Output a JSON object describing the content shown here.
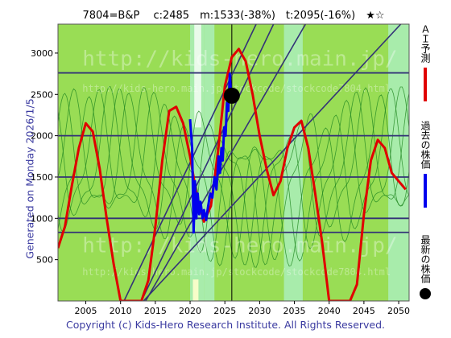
{
  "header": {
    "title": "7804=B&P　 c:2485　m:1533(-38%)　t:2095(-16%)　★☆"
  },
  "side_text": "Generated on Monday 2026/1/5.",
  "footer": {
    "copyright": "Copyright (c) Kids-Hero Research Institute. All Rights Reserved."
  },
  "watermark": {
    "main": "http://kids-hero.main.jp/",
    "small": "http://kids-hero.main.jp/stockcode/stockcode7804.html"
  },
  "legend": {
    "ai_forecast": "ＡＩ予測",
    "past_price": "過去の株価",
    "latest_price": "最新の株価"
  },
  "colors": {
    "forecast": "#e00000",
    "past": "#0000ee",
    "latest": "#000000",
    "background_green": "#99dd55",
    "light_green": "#aaeebb",
    "guide_lines": "#333377",
    "thin_oscillation": "#228822"
  },
  "chart_data": {
    "type": "line",
    "xlim": [
      2001,
      2051.5
    ],
    "ylim": [
      0,
      3350
    ],
    "x_ticks": [
      2005,
      2010,
      2015,
      2020,
      2025,
      2030,
      2035,
      2040,
      2045,
      2050
    ],
    "y_ticks": [
      500,
      1000,
      1500,
      2000,
      2500,
      3000
    ],
    "horizontal_levels": [
      830,
      1000,
      1500,
      2000,
      2760
    ],
    "vertical_marker_x": 2026.0,
    "series": [
      {
        "key": "ai_forecast",
        "x": [
          2001,
          2002,
          2003,
          2004,
          2005,
          2006,
          2007,
          2008,
          2009,
          2010,
          2011,
          2012,
          2013,
          2014,
          2015,
          2016,
          2017,
          2018,
          2019,
          2020,
          2021,
          2022,
          2023,
          2024,
          2025,
          2026,
          2027,
          2028,
          2029,
          2030,
          2031,
          2032,
          2033,
          2034,
          2035,
          2036,
          2037,
          2038,
          2039,
          2040,
          2041,
          2042,
          2043,
          2044,
          2045,
          2046,
          2047,
          2048,
          2049,
          2050,
          2051
        ],
        "values": [
          640,
          900,
          1400,
          1850,
          2150,
          2050,
          1600,
          1000,
          450,
          0,
          0,
          0,
          0,
          250,
          900,
          1700,
          2300,
          2350,
          2150,
          1750,
          1250,
          960,
          1150,
          1800,
          2600,
          2950,
          3050,
          2900,
          2500,
          2000,
          1600,
          1280,
          1450,
          1850,
          2100,
          2180,
          1850,
          1300,
          700,
          0,
          0,
          0,
          0,
          200,
          1050,
          1700,
          1950,
          1850,
          1550,
          1450,
          1350
        ]
      },
      {
        "key": "past_price",
        "x": [
          2020.0,
          2020.3,
          2020.5,
          2020.7,
          2020.9,
          2021.1,
          2021.3,
          2021.5,
          2021.8,
          2022.0,
          2022.3,
          2022.6,
          2022.9,
          2023.2,
          2023.5,
          2023.8,
          2024.1,
          2024.3,
          2024.5,
          2024.7,
          2024.9,
          2025.1,
          2025.3,
          2025.5,
          2025.7,
          2025.9
        ],
        "values": [
          2200,
          1850,
          830,
          1450,
          1000,
          1300,
          1050,
          1200,
          1000,
          1100,
          980,
          1150,
          1300,
          1250,
          1500,
          1350,
          1750,
          1550,
          1850,
          1700,
          2100,
          2000,
          2400,
          2300,
          2750,
          2485
        ]
      }
    ],
    "latest": {
      "x": 2026.0,
      "value": 2485
    },
    "trend_lines": [
      {
        "x": [
          2010.5,
          2029.5
        ],
        "values": [
          0,
          3350
        ]
      },
      {
        "x": [
          2013.0,
          2032.0
        ],
        "values": [
          0,
          3350
        ]
      },
      {
        "x": [
          2013.3,
          2050.3
        ],
        "values": [
          0,
          3350
        ]
      },
      {
        "x": [
          2013.6,
          2036.6
        ],
        "values": [
          0,
          3350
        ]
      }
    ]
  }
}
